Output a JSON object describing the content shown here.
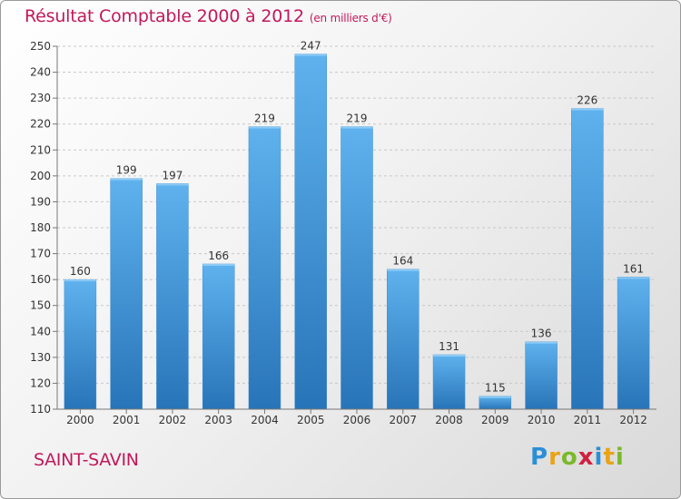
{
  "chart_data": {
    "type": "bar",
    "title": "Résultat Comptable 2000 à 2012",
    "subtitle": "(en milliers d'€)",
    "categories": [
      "2000",
      "2001",
      "2002",
      "2003",
      "2004",
      "2005",
      "2006",
      "2007",
      "2008",
      "2009",
      "2010",
      "2011",
      "2012"
    ],
    "values": [
      160,
      199,
      197,
      166,
      219,
      247,
      219,
      164,
      131,
      115,
      136,
      226,
      161
    ],
    "ylim": [
      110,
      250
    ],
    "yticks": [
      110,
      120,
      130,
      140,
      150,
      160,
      170,
      180,
      190,
      200,
      210,
      220,
      230,
      240,
      250
    ],
    "xlabel": "",
    "ylabel": "",
    "grid": true,
    "bar_color": "#4a9ede",
    "bar_color_dark": "#2a78bc"
  },
  "location": {
    "name": "SAINT-SAVIN"
  },
  "brand": {
    "letters": [
      "P",
      "r",
      "o",
      "x",
      "i",
      "t",
      "i"
    ],
    "colors": [
      "#2a8fd6",
      "#e8a317",
      "#7ab929",
      "#d1203f",
      "#2a8fd6",
      "#e8a317",
      "#7ab929"
    ]
  }
}
